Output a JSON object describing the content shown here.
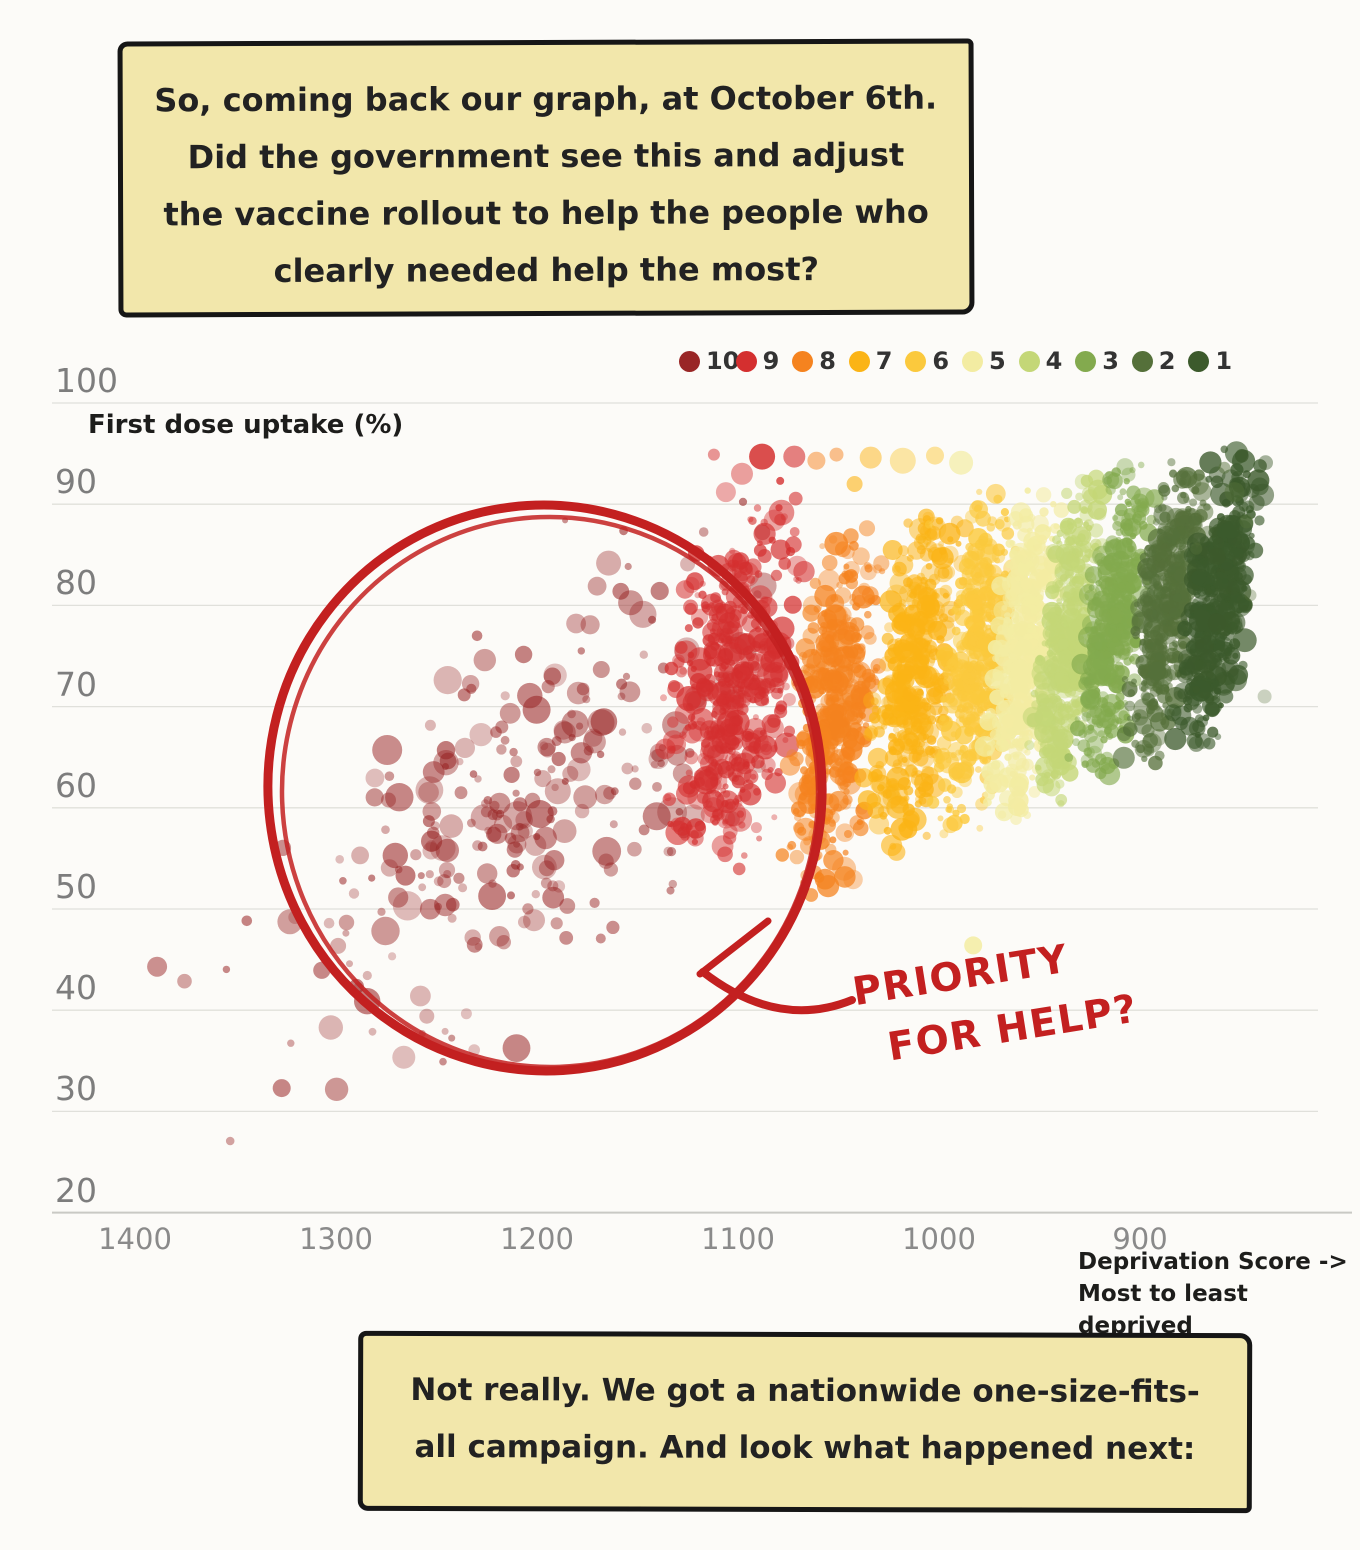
{
  "page": {
    "background": "#fcfbf8"
  },
  "speech_top": {
    "lines": [
      "So, coming back our graph, at October 6th.",
      "Did the government see this and adjust",
      "the vaccine rollout to help the people who",
      "clearly needed help the most?"
    ]
  },
  "speech_bottom": {
    "lines": [
      "Not really. We got a nationwide one-size-fits-",
      "all campaign. And look what happened next:"
    ]
  },
  "annotation": {
    "line1": "PRIORITY",
    "line2": "FOR HELP?",
    "color": "#c32020"
  },
  "chart_data": {
    "type": "scatter",
    "title": "",
    "ylabel": "First dose uptake (%)",
    "xlabel_line1": "Deprivation Score ->",
    "xlabel_line2": "Most to least deprived",
    "x_axis_reversed": true,
    "x_ticks": [
      1400,
      1300,
      1200,
      1100,
      1000,
      900
    ],
    "y_ticks": [
      100,
      90,
      80,
      70,
      60,
      50,
      40,
      30,
      20
    ],
    "ylim": [
      20,
      100
    ],
    "xlim": [
      1430,
      820
    ],
    "grid": true,
    "legend_position": "top-right",
    "legend": [
      {
        "label": "10",
        "color": "#992626"
      },
      {
        "label": "9",
        "color": "#d42f2f"
      },
      {
        "label": "8",
        "color": "#f5831f"
      },
      {
        "label": "7",
        "color": "#fbb416"
      },
      {
        "label": "6",
        "color": "#fbc93d"
      },
      {
        "label": "5",
        "color": "#f3eca2"
      },
      {
        "label": "4",
        "color": "#c4d777"
      },
      {
        "label": "3",
        "color": "#83aa4e"
      },
      {
        "label": "2",
        "color": "#55703a"
      },
      {
        "label": "1",
        "color": "#3c5a2c"
      }
    ],
    "decile_colors": {
      "10": "#992626",
      "9": "#d42f2f",
      "8": "#f5831f",
      "7": "#fbb416",
      "6": "#fbc93d",
      "5": "#f3eca2",
      "4": "#c4d777",
      "3": "#83aa4e",
      "2": "#55703a",
      "1": "#3c5a2c"
    },
    "seed": 7,
    "clusters": [
      {
        "decile": 10,
        "type": "diagonal",
        "color": "#992626",
        "n": 280,
        "d_from": 1332,
        "d_to": 1085,
        "u_from": 36,
        "u_to": 82,
        "d_jitter": 110,
        "u_jitter": 26,
        "r_min": 3.5,
        "r_max": 15,
        "alpha_min": 0.28,
        "alpha_max": 0.6
      },
      {
        "decile": 9,
        "type": "band",
        "color": "#d42f2f",
        "n": 460,
        "d_center": 1103,
        "d_spread": 34,
        "u_min": 52,
        "u_max": 92,
        "lean": 0.5,
        "r_min": 3,
        "r_max": 13,
        "alpha_min": 0.35,
        "alpha_max": 0.75
      },
      {
        "decile": 8,
        "type": "band",
        "color": "#f5831f",
        "n": 420,
        "d_center": 1052,
        "d_spread": 22,
        "u_min": 51,
        "u_max": 89,
        "lean": 0.5,
        "r_min": 3,
        "r_max": 12,
        "alpha_min": 0.35,
        "alpha_max": 0.8
      },
      {
        "decile": 7,
        "type": "band",
        "color": "#fbb416",
        "n": 420,
        "d_center": 1013,
        "d_spread": 21,
        "u_min": 54,
        "u_max": 91,
        "lean": 0.5,
        "r_min": 3,
        "r_max": 12,
        "alpha_min": 0.35,
        "alpha_max": 0.8
      },
      {
        "decile": 6,
        "type": "band",
        "color": "#fbc93d",
        "n": 400,
        "d_center": 981,
        "d_spread": 17,
        "u_min": 56,
        "u_max": 92,
        "lean": 0.5,
        "r_min": 3,
        "r_max": 11,
        "alpha_min": 0.4,
        "alpha_max": 0.85
      },
      {
        "decile": 5,
        "type": "band",
        "color": "#f3eca2",
        "n": 400,
        "d_center": 958,
        "d_spread": 16,
        "u_min": 58,
        "u_max": 92.5,
        "lean": 0.5,
        "r_min": 3,
        "r_max": 11,
        "alpha_min": 0.5,
        "alpha_max": 0.9
      },
      {
        "decile": 4,
        "type": "band",
        "color": "#c4d777",
        "n": 400,
        "d_center": 936,
        "d_spread": 15,
        "u_min": 60,
        "u_max": 93.5,
        "lean": 0.5,
        "r_min": 3,
        "r_max": 11,
        "alpha_min": 0.4,
        "alpha_max": 0.85
      },
      {
        "decile": 3,
        "type": "band",
        "color": "#83aa4e",
        "n": 400,
        "d_center": 913,
        "d_spread": 15,
        "u_min": 62,
        "u_max": 94.5,
        "lean": 0.6,
        "r_min": 3,
        "r_max": 11,
        "alpha_min": 0.4,
        "alpha_max": 0.8
      },
      {
        "decile": 2,
        "type": "band",
        "color": "#55703a",
        "n": 400,
        "d_center": 887,
        "d_spread": 16,
        "u_min": 63.5,
        "u_max": 95.5,
        "lean": 0.7,
        "r_min": 3,
        "r_max": 11,
        "alpha_min": 0.4,
        "alpha_max": 0.8
      },
      {
        "decile": 1,
        "type": "band",
        "color": "#3c5a2c",
        "n": 430,
        "d_center": 861,
        "d_spread": 17,
        "u_min": 65,
        "u_max": 96,
        "lean": 0.7,
        "r_min": 3,
        "r_max": 12,
        "alpha_min": 0.45,
        "alpha_max": 0.85
      }
    ],
    "extra_points": [
      {
        "d": 1088,
        "u": 94.7,
        "r": 13,
        "dec": 9,
        "a": 0.85
      },
      {
        "d": 1072,
        "u": 94.7,
        "r": 11,
        "dec": 9,
        "a": 0.6
      },
      {
        "d": 1061,
        "u": 94.3,
        "r": 9,
        "dec": 8,
        "a": 0.5
      },
      {
        "d": 1051,
        "u": 94.9,
        "r": 7,
        "dec": 8,
        "a": 0.5
      },
      {
        "d": 1098,
        "u": 93.0,
        "r": 11,
        "dec": 9,
        "a": 0.45
      },
      {
        "d": 1106,
        "u": 91.2,
        "r": 10,
        "dec": 9,
        "a": 0.4
      },
      {
        "d": 1112,
        "u": 94.9,
        "r": 6,
        "dec": 9,
        "a": 0.5
      },
      {
        "d": 1079,
        "u": 92.3,
        "r": 4,
        "dec": 9,
        "a": 0.8
      },
      {
        "d": 1034,
        "u": 94.6,
        "r": 11,
        "dec": 7,
        "a": 0.5
      },
      {
        "d": 1018,
        "u": 94.3,
        "r": 13,
        "dec": 6,
        "a": 0.45
      },
      {
        "d": 1002,
        "u": 94.8,
        "r": 9,
        "dec": 6,
        "a": 0.5
      },
      {
        "d": 989,
        "u": 94.1,
        "r": 12,
        "dec": 5,
        "a": 0.7
      },
      {
        "d": 1042,
        "u": 92.0,
        "r": 8,
        "dec": 7,
        "a": 0.6
      },
      {
        "d": 1389,
        "u": 44.3,
        "r": 10,
        "dec": 10,
        "a": 0.5
      },
      {
        "d": 1327,
        "u": 32.3,
        "r": 9,
        "dec": 10,
        "a": 0.55
      },
      {
        "d": 1186,
        "u": 88.4,
        "r": 3,
        "dec": 10,
        "a": 0.5
      },
      {
        "d": 983,
        "u": 46.4,
        "r": 9,
        "dec": 5,
        "a": 0.85
      },
      {
        "d": 853,
        "u": 91.2,
        "r": 10,
        "dec": 2,
        "a": 0.45
      },
      {
        "d": 858,
        "u": 93.6,
        "r": 6,
        "dec": 2,
        "a": 0.5
      },
      {
        "d": 847,
        "u": 88.3,
        "r": 7,
        "dec": 2,
        "a": 0.45
      },
      {
        "d": 872,
        "u": 85.6,
        "r": 6,
        "dec": 2,
        "a": 0.4
      },
      {
        "d": 888,
        "u": 75.6,
        "r": 5,
        "dec": 2,
        "a": 0.5
      },
      {
        "d": 845,
        "u": 81.0,
        "r": 6,
        "dec": 2,
        "a": 0.35
      },
      {
        "d": 838,
        "u": 71.0,
        "r": 7,
        "dec": 2,
        "a": 0.3
      },
      {
        "d": 1005,
        "u": 88.0,
        "r": 4,
        "dec": 6,
        "a": 0.5
      }
    ]
  }
}
